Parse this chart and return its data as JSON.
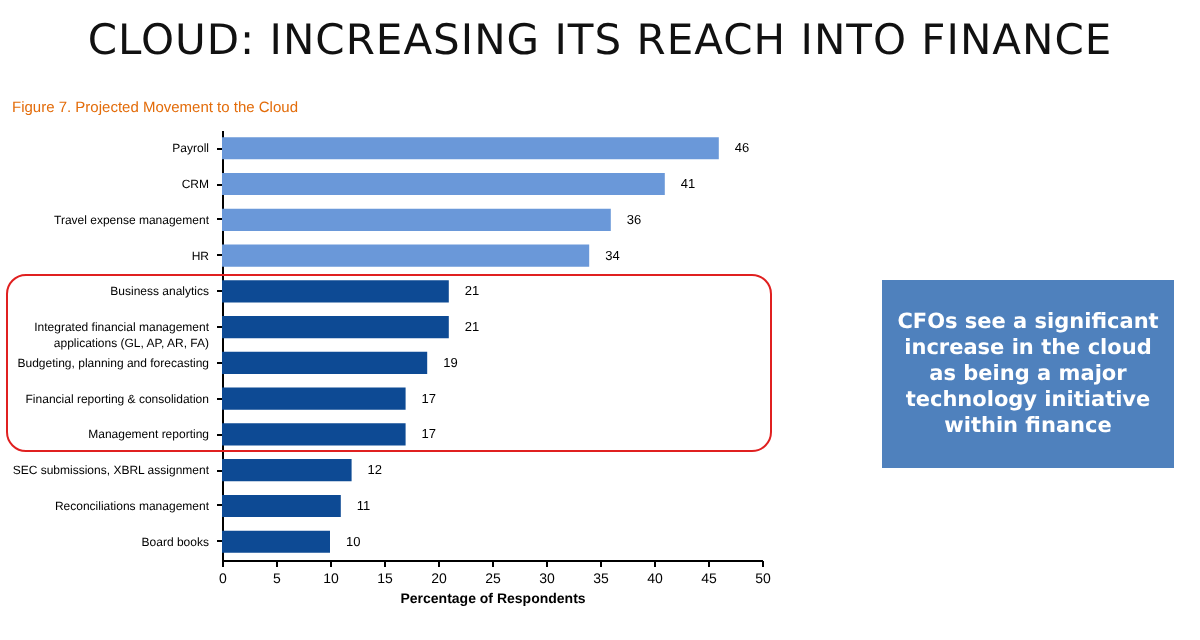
{
  "chart_data": {
    "type": "bar",
    "orientation": "horizontal",
    "title": "CLOUD: INCREASING ITS REACH INTO FINANCE",
    "subtitle": "Figure 7. Projected Movement to the Cloud",
    "xlabel": "Percentage of Respondents",
    "categories": [
      "Payroll",
      "CRM",
      "Travel expense management",
      "HR",
      "Business analytics",
      "Integrated financial management applications (GL, AP, AR, FA)",
      "Budgeting, planning and forecasting",
      "Financial reporting & consolidation",
      "Management reporting",
      "SEC submissions, XBRL assignment",
      "Reconciliations management",
      "Board books"
    ],
    "values": [
      46,
      41,
      36,
      34,
      21,
      21,
      19,
      17,
      17,
      12,
      11,
      10
    ],
    "colors": [
      "#6a98d9",
      "#6a98d9",
      "#6a98d9",
      "#6a98d9",
      "#0d4a94",
      "#0d4a94",
      "#0d4a94",
      "#0d4a94",
      "#0d4a94",
      "#0d4a94",
      "#0d4a94",
      "#0d4a94"
    ],
    "xlim": [
      0,
      50
    ],
    "xticks": [
      0,
      5,
      10,
      15,
      20,
      25,
      30,
      35,
      40,
      45,
      50
    ],
    "grid": false,
    "data_labels": true,
    "annotations": [
      "CFOs see a significant increase in the cloud as being a major technology initiative within finance"
    ]
  }
}
